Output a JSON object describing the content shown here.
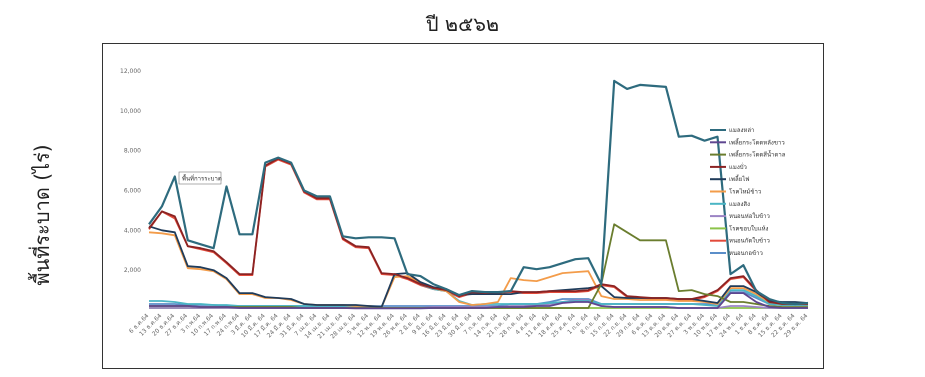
{
  "title": "ปี ๒๕๖๒",
  "chart_data": {
    "type": "line",
    "title": "ปี ๒๕๖๒",
    "xlabel": "",
    "ylabel": "พื้นที่ระบาด (ไร่)",
    "ylim": [
      0,
      12000
    ],
    "yticks": [
      "",
      "2,000",
      "4,000",
      "6,000",
      "8,000",
      "10,000",
      "12,000"
    ],
    "grid": false,
    "legend_position": "right",
    "annotation": "พื้นที่การระบาด",
    "x": [
      "6 ธ.ค.64",
      "13 ธ.ค.64",
      "20 ธ.ค.64",
      "27 ธ.ค.64",
      "3 ก.พ.64",
      "10 ก.พ.64",
      "17 ก.พ.64",
      "24 ก.พ.64",
      "3 มี.ค. 64",
      "10 มี.ค. 64",
      "17 มี.ค. 64",
      "24 มี.ค. 64",
      "31 มี.ค. 64",
      "7 เม.ย. 64",
      "14 เม.ย. 64",
      "21 เม.ย. 64",
      "28 เม.ย. 64",
      "5 พ.ค. 64",
      "12 พ.ค. 64",
      "19 พ.ค. 64",
      "26 พ.ค. 64",
      "2 มิ.ย. 64",
      "9 มิ.ย. 64",
      "16 มิ.ย. 64",
      "23 มิ.ย. 64",
      "30 มิ.ย. 64",
      "7 ก.ค. 64",
      "14 ก.ค. 64",
      "21 ก.ค. 64",
      "28 ก.ค. 64",
      "4 ส.ค. 64",
      "11 ส.ค. 64",
      "18 ส.ค. 64",
      "25 ส.ค. 64",
      "1 ก.ย. 64",
      "8 ก.ย. 64",
      "15 ก.ย. 64",
      "22 ก.ย. 64",
      "29 ก.ย. 64",
      "6 ต.ค. 64",
      "13 ต.ค. 64",
      "20 ต.ค. 64",
      "27 ต.ค. 64",
      "3 พ.ย. 64",
      "10 พ.ย. 64",
      "17 พ.ย. 64",
      "24 พ.ย. 64",
      "1 ธ.ค. 64",
      "8 ธ.ค. 64",
      "15 ธ.ค. 64",
      "22 ธ.ค. 64",
      "29 ธ.ค. 64"
    ],
    "series": [
      {
        "name": "แมลงหล่า",
        "color": "#2e6b7e",
        "values": [
          4300,
          5200,
          6700,
          3500,
          3300,
          3100,
          6200,
          3800,
          3800,
          7400,
          7650,
          7400,
          6000,
          5700,
          5700,
          3700,
          3600,
          3650,
          3650,
          3600,
          1800,
          1700,
          1300,
          1050,
          750,
          950,
          900,
          900,
          950,
          2150,
          2050,
          2150,
          2350,
          2550,
          2600,
          1300,
          11500,
          11100,
          11300,
          11250,
          11200,
          8700,
          8750,
          8500,
          8700,
          1800,
          2250,
          950,
          550,
          350,
          300,
          350
        ]
      },
      {
        "name": "เพลี้ยกระโดดหลังขาว",
        "color": "#5f4690",
        "values": [
          200,
          200,
          200,
          200,
          150,
          150,
          150,
          100,
          100,
          100,
          100,
          100,
          100,
          100,
          100,
          100,
          80,
          80,
          80,
          80,
          80,
          80,
          100,
          100,
          100,
          100,
          100,
          150,
          150,
          150,
          200,
          200,
          350,
          400,
          400,
          200,
          150,
          150,
          150,
          150,
          150,
          100,
          100,
          100,
          100,
          850,
          850,
          400,
          150,
          100,
          100,
          100
        ]
      },
      {
        "name": "เพลี้ยกระโดดสีน้ำตาล",
        "color": "#6a7d2e",
        "values": [
          200,
          200,
          200,
          200,
          150,
          150,
          150,
          150,
          150,
          150,
          150,
          150,
          100,
          100,
          100,
          100,
          100,
          100,
          100,
          100,
          100,
          100,
          100,
          100,
          100,
          100,
          100,
          100,
          100,
          100,
          100,
          100,
          100,
          100,
          100,
          1300,
          4300,
          3900,
          3500,
          3500,
          3500,
          950,
          1000,
          800,
          700,
          400,
          400,
          300,
          200,
          150,
          150,
          150
        ]
      },
      {
        "name": "แมงบั่ว",
        "color": "#8b2323",
        "values": [
          4100,
          4950,
          4700,
          3200,
          3100,
          2950,
          2400,
          1800,
          1800,
          7250,
          7600,
          7350,
          5950,
          5600,
          5600,
          3600,
          3200,
          3150,
          1850,
          1800,
          1600,
          1300,
          1100,
          1000,
          700,
          900,
          850,
          900,
          950,
          900,
          900,
          950,
          950,
          950,
          1000,
          1300,
          1200,
          700,
          650,
          600,
          600,
          550,
          550,
          700,
          1000,
          1600,
          1700,
          1000,
          400,
          300,
          300,
          300
        ]
      },
      {
        "name": "เพลี้ยไฟ",
        "color": "#1f3b5a",
        "values": [
          4200,
          4000,
          3900,
          2200,
          2150,
          2000,
          1600,
          850,
          850,
          650,
          600,
          550,
          300,
          250,
          250,
          250,
          250,
          200,
          150,
          1800,
          1850,
          1400,
          1150,
          1050,
          750,
          800,
          800,
          800,
          800,
          900,
          900,
          950,
          1000,
          1050,
          1100,
          1200,
          650,
          600,
          600,
          600,
          600,
          550,
          550,
          450,
          350,
          1200,
          1200,
          900,
          450,
          400,
          400,
          350
        ]
      },
      {
        "name": "โรคไหม้ข้าว",
        "color": "#f39c4a",
        "values": [
          3900,
          3850,
          3750,
          2100,
          2050,
          1950,
          1550,
          800,
          800,
          600,
          600,
          500,
          300,
          250,
          250,
          250,
          200,
          200,
          150,
          1650,
          1700,
          1350,
          1100,
          950,
          400,
          250,
          300,
          400,
          1600,
          1500,
          1450,
          1650,
          1850,
          1900,
          1950,
          700,
          550,
          550,
          500,
          500,
          500,
          450,
          450,
          400,
          300,
          1100,
          1100,
          800,
          400,
          300,
          300,
          300
        ]
      },
      {
        "name": "แมลงสิง",
        "color": "#4ab5c4",
        "values": [
          450,
          450,
          400,
          300,
          300,
          250,
          250,
          200,
          200,
          200,
          200,
          200,
          200,
          200,
          200,
          200,
          200,
          200,
          150,
          1700,
          1650,
          1300,
          1050,
          950,
          450,
          250,
          300,
          300,
          300,
          300,
          300,
          350,
          400,
          450,
          450,
          300,
          300,
          300,
          300,
          300,
          300,
          300,
          300,
          250,
          200,
          1000,
          1000,
          700,
          300,
          250,
          250,
          250
        ]
      },
      {
        "name": "หนอนห่อใบข้าว",
        "color": "#9b84c4",
        "values": [
          100,
          100,
          100,
          100,
          100,
          100,
          100,
          100,
          100,
          100,
          100,
          100,
          100,
          100,
          100,
          100,
          100,
          100,
          100,
          100,
          100,
          100,
          150,
          150,
          150,
          150,
          150,
          150,
          200,
          200,
          250,
          300,
          400,
          500,
          500,
          200,
          150,
          150,
          150,
          150,
          150,
          100,
          100,
          100,
          100,
          200,
          200,
          150,
          100,
          100,
          100,
          100
        ]
      },
      {
        "name": "โรคขอบใบแห้ง",
        "color": "#8bc34a",
        "values": [
          100,
          100,
          100,
          100,
          100,
          100,
          100,
          100,
          100,
          100,
          100,
          100,
          100,
          100,
          100,
          100,
          100,
          100,
          100,
          100,
          100,
          100,
          100,
          100,
          100,
          100,
          100,
          100,
          100,
          100,
          100,
          100,
          100,
          100,
          100,
          100,
          100,
          100,
          100,
          100,
          100,
          100,
          100,
          100,
          100,
          100,
          100,
          100,
          100,
          100,
          100,
          100
        ]
      },
      {
        "name": "หนอนกัดใบข้าว",
        "color": "#e24a3a",
        "values": [
          4050,
          4950,
          4600,
          3200,
          3050,
          2900,
          2350,
          1750,
          1750,
          7200,
          7550,
          7300,
          5900,
          5550,
          5550,
          3550,
          3150,
          3100,
          1800,
          1750,
          1550,
          1250,
          1050,
          950,
          650,
          850,
          800,
          850,
          900,
          850,
          850,
          900,
          900,
          900,
          950,
          1250,
          1150,
          650,
          600,
          550,
          550,
          500,
          500,
          650,
          950,
          1550,
          1650,
          950,
          350,
          250,
          250,
          250
        ]
      },
      {
        "name": "หนอนกอข้าว",
        "color": "#5b8ec9",
        "values": [
          300,
          300,
          300,
          250,
          250,
          250,
          200,
          200,
          200,
          200,
          200,
          200,
          200,
          200,
          200,
          200,
          200,
          200,
          200,
          200,
          200,
          200,
          200,
          200,
          200,
          200,
          200,
          200,
          300,
          300,
          300,
          400,
          550,
          550,
          550,
          300,
          300,
          300,
          300,
          300,
          300,
          300,
          300,
          300,
          300,
          900,
          900,
          600,
          300,
          250,
          250,
          250
        ]
      }
    ]
  }
}
